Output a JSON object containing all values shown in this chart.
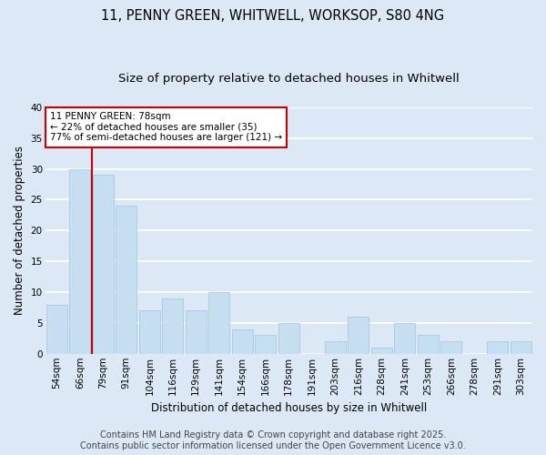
{
  "title_line1": "11, PENNY GREEN, WHITWELL, WORKSOP, S80 4NG",
  "title_line2": "Size of property relative to detached houses in Whitwell",
  "xlabel": "Distribution of detached houses by size in Whitwell",
  "ylabel": "Number of detached properties",
  "categories": [
    "54sqm",
    "66sqm",
    "79sqm",
    "91sqm",
    "104sqm",
    "116sqm",
    "129sqm",
    "141sqm",
    "154sqm",
    "166sqm",
    "178sqm",
    "191sqm",
    "203sqm",
    "216sqm",
    "228sqm",
    "241sqm",
    "253sqm",
    "266sqm",
    "278sqm",
    "291sqm",
    "303sqm"
  ],
  "values": [
    8,
    30,
    29,
    24,
    7,
    9,
    7,
    10,
    4,
    3,
    5,
    0,
    2,
    6,
    1,
    5,
    3,
    2,
    0,
    2,
    2
  ],
  "bar_color": "#c5dff0",
  "bar_edge_color": "#a0c4e0",
  "red_line_color": "#cc0000",
  "red_line_x": 1.5,
  "annotation_text": "11 PENNY GREEN: 78sqm\n← 22% of detached houses are smaller (35)\n77% of semi-detached houses are larger (121) →",
  "annotation_box_facecolor": "#ffffff",
  "annotation_box_edgecolor": "#cc0000",
  "ylim": [
    0,
    40
  ],
  "yticks": [
    0,
    5,
    10,
    15,
    20,
    25,
    30,
    35,
    40
  ],
  "footer_line1": "Contains HM Land Registry data © Crown copyright and database right 2025.",
  "footer_line2": "Contains public sector information licensed under the Open Government Licence v3.0.",
  "background_color": "#dce8f5",
  "plot_background_color": "#dce8f5",
  "grid_color": "#ffffff",
  "title_fontsize": 10.5,
  "subtitle_fontsize": 9.5,
  "axis_label_fontsize": 8.5,
  "tick_fontsize": 7.5,
  "annotation_fontsize": 7.5,
  "footer_fontsize": 7
}
